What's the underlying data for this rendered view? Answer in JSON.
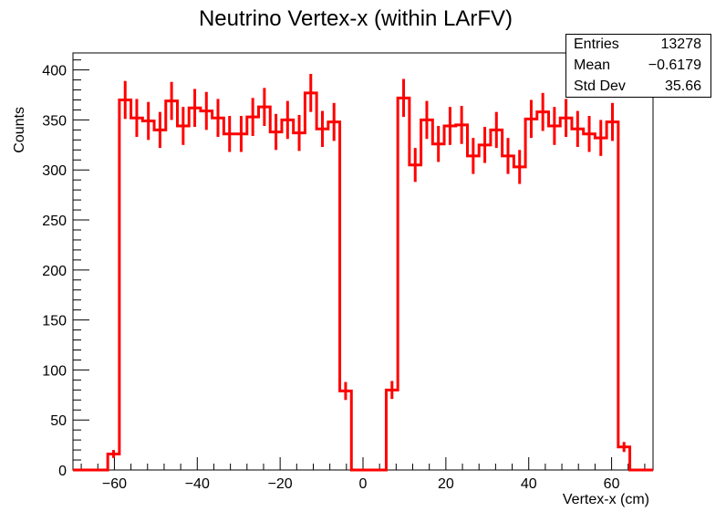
{
  "chart_data": {
    "type": "histogram",
    "title": "Neutrino Vertex-x (within LArFV)",
    "xlabel": "Vertex-x (cm)",
    "ylabel": "Counts",
    "xlim": [
      -70,
      70
    ],
    "ylim": [
      0,
      417
    ],
    "xticks": [
      -60,
      -40,
      -20,
      0,
      20,
      40,
      60
    ],
    "xtick_labels": [
      "−60",
      "−40",
      "−20",
      "0",
      "20",
      "40",
      "60"
    ],
    "yticks": [
      0,
      50,
      100,
      150,
      200,
      250,
      300,
      350,
      400
    ],
    "ytick_labels": [
      "0",
      "50",
      "100",
      "150",
      "200",
      "250",
      "300",
      "350",
      "400"
    ],
    "bin_width": 2.8,
    "bin_edges_start": -70,
    "values": [
      0,
      0,
      0,
      16,
      370,
      352,
      349,
      340,
      369,
      344,
      362,
      359,
      352,
      336,
      336,
      353,
      363,
      338,
      350,
      337,
      377,
      341,
      348,
      79,
      0,
      0,
      0,
      80,
      372,
      305,
      350,
      326,
      344,
      345,
      314,
      325,
      340,
      314,
      303,
      351,
      358,
      344,
      352,
      341,
      336,
      332,
      348,
      23,
      0,
      0
    ],
    "errors": [
      0,
      0,
      0,
      4,
      19,
      19,
      19,
      18,
      19,
      19,
      19,
      19,
      19,
      18,
      18,
      19,
      19,
      18,
      19,
      18,
      19,
      18,
      19,
      9,
      0,
      0,
      0,
      9,
      19,
      17,
      19,
      18,
      19,
      19,
      18,
      18,
      18,
      18,
      17,
      19,
      19,
      19,
      19,
      18,
      18,
      18,
      19,
      5,
      0,
      0
    ],
    "color": "#ff0000",
    "grid": false
  },
  "stats": {
    "entries_label": "Entries",
    "entries_value": "13278",
    "mean_label": "Mean",
    "mean_value": "−0.6179",
    "stddev_label": "Std Dev",
    "stddev_value": "35.66"
  }
}
